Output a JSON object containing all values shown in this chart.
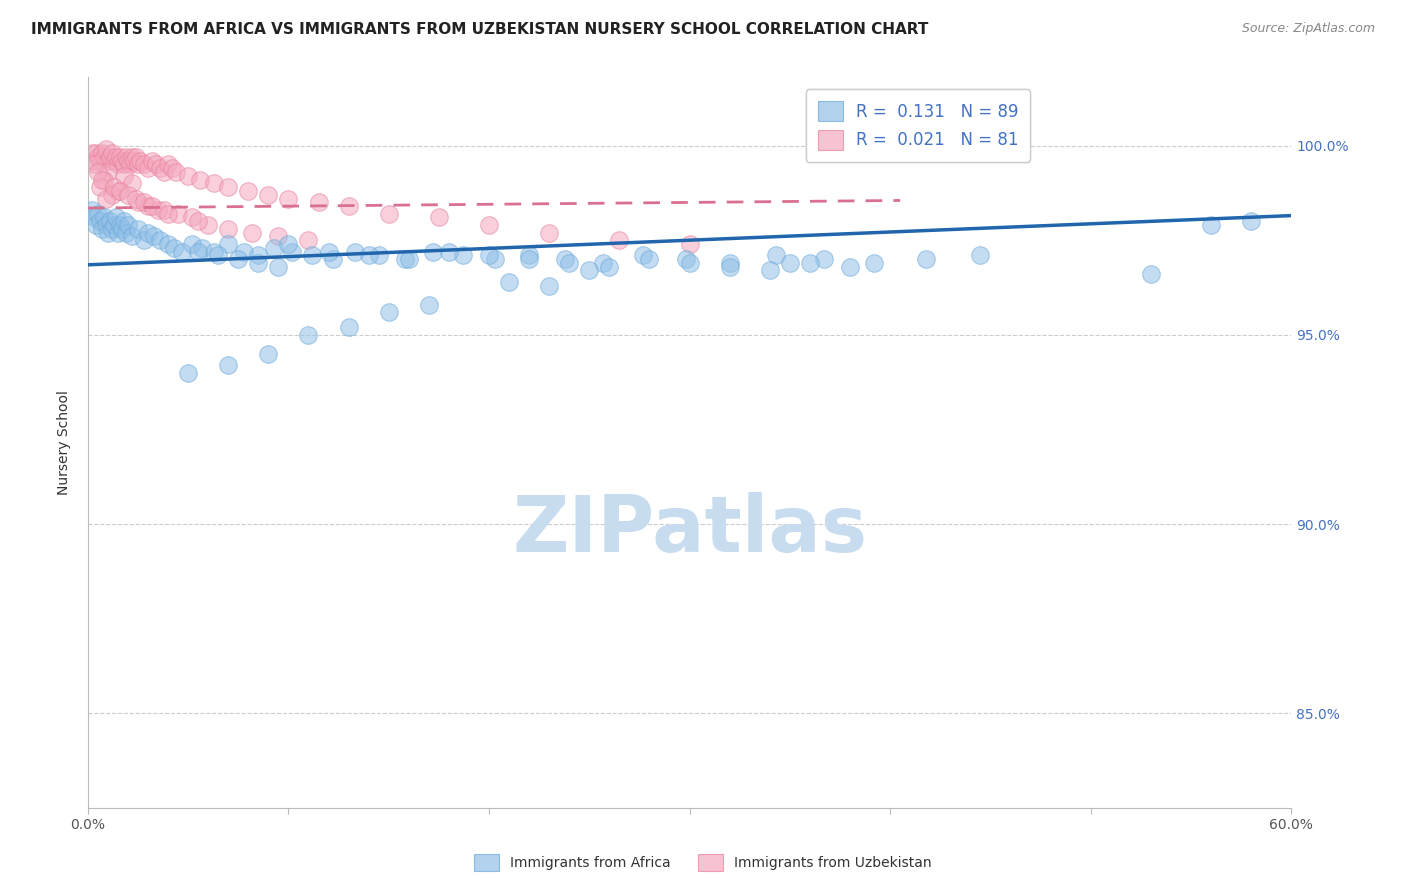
{
  "title": "IMMIGRANTS FROM AFRICA VS IMMIGRANTS FROM UZBEKISTAN NURSERY SCHOOL CORRELATION CHART",
  "source": "Source: ZipAtlas.com",
  "ylabel": "Nursery School",
  "ytick_labels": [
    "85.0%",
    "90.0%",
    "95.0%",
    "100.0%"
  ],
  "ytick_values": [
    0.85,
    0.9,
    0.95,
    1.0
  ],
  "xlim": [
    0.0,
    0.6
  ],
  "ylim": [
    0.825,
    1.018
  ],
  "legend_r_africa": "R =  0.131",
  "legend_n_africa": "N = 89",
  "legend_r_uzbek": "R =  0.021",
  "legend_n_uzbek": "N = 81",
  "africa_color": "#92C0E8",
  "uzbek_color": "#F4A8BE",
  "africa_edge_color": "#6AA8D8",
  "uzbek_edge_color": "#E8809C",
  "africa_line_color": "#2166AC",
  "uzbek_line_color": "#D97090",
  "grid_color": "#CCCCCC",
  "watermark_color": "#C8DCF0",
  "africa_scatter_x": [
    0.002,
    0.003,
    0.004,
    0.005,
    0.006,
    0.007,
    0.008,
    0.009,
    0.01,
    0.011,
    0.012,
    0.013,
    0.014,
    0.015,
    0.016,
    0.017,
    0.018,
    0.019,
    0.02,
    0.022,
    0.025,
    0.028,
    0.03,
    0.033,
    0.036,
    0.04,
    0.043,
    0.047,
    0.052,
    0.057,
    0.063,
    0.07,
    0.078,
    0.085,
    0.093,
    0.102,
    0.112,
    0.122,
    0.133,
    0.145,
    0.158,
    0.172,
    0.187,
    0.203,
    0.22,
    0.238,
    0.257,
    0.277,
    0.298,
    0.32,
    0.343,
    0.367,
    0.392,
    0.418,
    0.445,
    0.1,
    0.12,
    0.14,
    0.16,
    0.18,
    0.2,
    0.22,
    0.24,
    0.26,
    0.28,
    0.3,
    0.32,
    0.34,
    0.36,
    0.38,
    0.055,
    0.065,
    0.075,
    0.085,
    0.095,
    0.25,
    0.35,
    0.58,
    0.56,
    0.53,
    0.21,
    0.23,
    0.17,
    0.15,
    0.13,
    0.11,
    0.09,
    0.07,
    0.05
  ],
  "africa_scatter_y": [
    0.983,
    0.981,
    0.979,
    0.982,
    0.98,
    0.978,
    0.981,
    0.979,
    0.977,
    0.98,
    0.978,
    0.979,
    0.981,
    0.977,
    0.979,
    0.978,
    0.98,
    0.977,
    0.979,
    0.976,
    0.978,
    0.975,
    0.977,
    0.976,
    0.975,
    0.974,
    0.973,
    0.972,
    0.974,
    0.973,
    0.972,
    0.974,
    0.972,
    0.971,
    0.973,
    0.972,
    0.971,
    0.97,
    0.972,
    0.971,
    0.97,
    0.972,
    0.971,
    0.97,
    0.971,
    0.97,
    0.969,
    0.971,
    0.97,
    0.969,
    0.971,
    0.97,
    0.969,
    0.97,
    0.971,
    0.974,
    0.972,
    0.971,
    0.97,
    0.972,
    0.971,
    0.97,
    0.969,
    0.968,
    0.97,
    0.969,
    0.968,
    0.967,
    0.969,
    0.968,
    0.972,
    0.971,
    0.97,
    0.969,
    0.968,
    0.967,
    0.969,
    0.98,
    0.979,
    0.966,
    0.964,
    0.963,
    0.958,
    0.956,
    0.952,
    0.95,
    0.945,
    0.942,
    0.94
  ],
  "uzbek_scatter_x": [
    0.002,
    0.003,
    0.004,
    0.005,
    0.006,
    0.007,
    0.008,
    0.009,
    0.01,
    0.011,
    0.012,
    0.013,
    0.014,
    0.015,
    0.016,
    0.017,
    0.018,
    0.019,
    0.02,
    0.021,
    0.022,
    0.023,
    0.024,
    0.025,
    0.026,
    0.028,
    0.03,
    0.032,
    0.034,
    0.036,
    0.038,
    0.04,
    0.042,
    0.044,
    0.05,
    0.056,
    0.063,
    0.07,
    0.08,
    0.09,
    0.1,
    0.115,
    0.13,
    0.15,
    0.175,
    0.2,
    0.23,
    0.265,
    0.3,
    0.01,
    0.008,
    0.006,
    0.018,
    0.022,
    0.015,
    0.012,
    0.009,
    0.025,
    0.03,
    0.035,
    0.003,
    0.005,
    0.007,
    0.013,
    0.016,
    0.02,
    0.024,
    0.028,
    0.032,
    0.038,
    0.045,
    0.052,
    0.06,
    0.07,
    0.082,
    0.095,
    0.11,
    0.04,
    0.055
  ],
  "uzbek_scatter_y": [
    0.998,
    0.996,
    0.998,
    0.997,
    0.996,
    0.998,
    0.997,
    0.999,
    0.996,
    0.997,
    0.998,
    0.996,
    0.997,
    0.995,
    0.997,
    0.996,
    0.995,
    0.997,
    0.996,
    0.995,
    0.997,
    0.996,
    0.997,
    0.995,
    0.996,
    0.995,
    0.994,
    0.996,
    0.995,
    0.994,
    0.993,
    0.995,
    0.994,
    0.993,
    0.992,
    0.991,
    0.99,
    0.989,
    0.988,
    0.987,
    0.986,
    0.985,
    0.984,
    0.982,
    0.981,
    0.979,
    0.977,
    0.975,
    0.974,
    0.993,
    0.991,
    0.989,
    0.992,
    0.99,
    0.988,
    0.987,
    0.986,
    0.985,
    0.984,
    0.983,
    0.995,
    0.993,
    0.991,
    0.989,
    0.988,
    0.987,
    0.986,
    0.985,
    0.984,
    0.983,
    0.982,
    0.981,
    0.979,
    0.978,
    0.977,
    0.976,
    0.975,
    0.982,
    0.98
  ],
  "africa_line_x": [
    0.0,
    0.6
  ],
  "africa_line_y": [
    0.9685,
    0.9815
  ],
  "uzbek_line_x": [
    0.0,
    0.405
  ],
  "uzbek_line_y": [
    0.9835,
    0.9855
  ],
  "background_color": "#FFFFFF",
  "title_fontsize": 11,
  "label_fontsize": 10,
  "tick_fontsize": 10,
  "legend_fontsize": 12
}
